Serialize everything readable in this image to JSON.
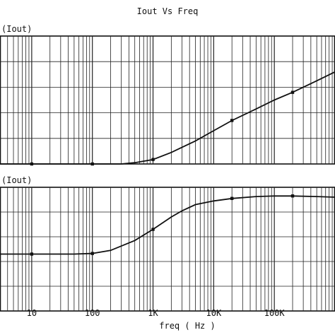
{
  "chart_data": {
    "type": "line",
    "title": "Iout Vs Freq",
    "xlabel": "freq ( Hz )",
    "x_scale": "log",
    "xlim": [
      3,
      1000000
    ],
    "x_ticks": [
      10,
      100,
      1000,
      10000,
      100000
    ],
    "x_tick_labels": [
      "10",
      "100",
      "1K",
      "10K",
      "100K"
    ],
    "grid": true,
    "legend": "none",
    "line_color": "#111111",
    "panels": [
      {
        "ylabel": "(Iout)",
        "y_scale": "relative",
        "ylim": [
          0,
          1
        ],
        "x": [
          3,
          10,
          50,
          100,
          300,
          500,
          1000,
          2000,
          5000,
          10000,
          20000,
          50000,
          100000,
          200000,
          500000,
          1000000
        ],
        "y": [
          0.0,
          0.0,
          0.0,
          0.0,
          0.0,
          0.01,
          0.035,
          0.09,
          0.18,
          0.26,
          0.34,
          0.43,
          0.5,
          0.56,
          0.65,
          0.72
        ],
        "markers_x": [
          10,
          100,
          1000,
          20000,
          200000
        ],
        "markers_y": [
          0.0,
          0.0,
          0.035,
          0.34,
          0.56
        ]
      },
      {
        "ylabel": "(Iout)",
        "y_scale": "relative",
        "ylim": [
          0,
          1
        ],
        "x": [
          3,
          10,
          50,
          100,
          200,
          500,
          1000,
          2000,
          3000,
          5000,
          10000,
          20000,
          50000,
          100000,
          200000,
          500000,
          1000000
        ],
        "y": [
          0.46,
          0.46,
          0.46,
          0.465,
          0.49,
          0.57,
          0.66,
          0.76,
          0.81,
          0.86,
          0.89,
          0.91,
          0.925,
          0.93,
          0.93,
          0.925,
          0.92
        ],
        "markers_x": [
          10,
          100,
          1000,
          20000,
          200000
        ],
        "markers_y": [
          0.46,
          0.465,
          0.66,
          0.91,
          0.93
        ]
      }
    ]
  }
}
